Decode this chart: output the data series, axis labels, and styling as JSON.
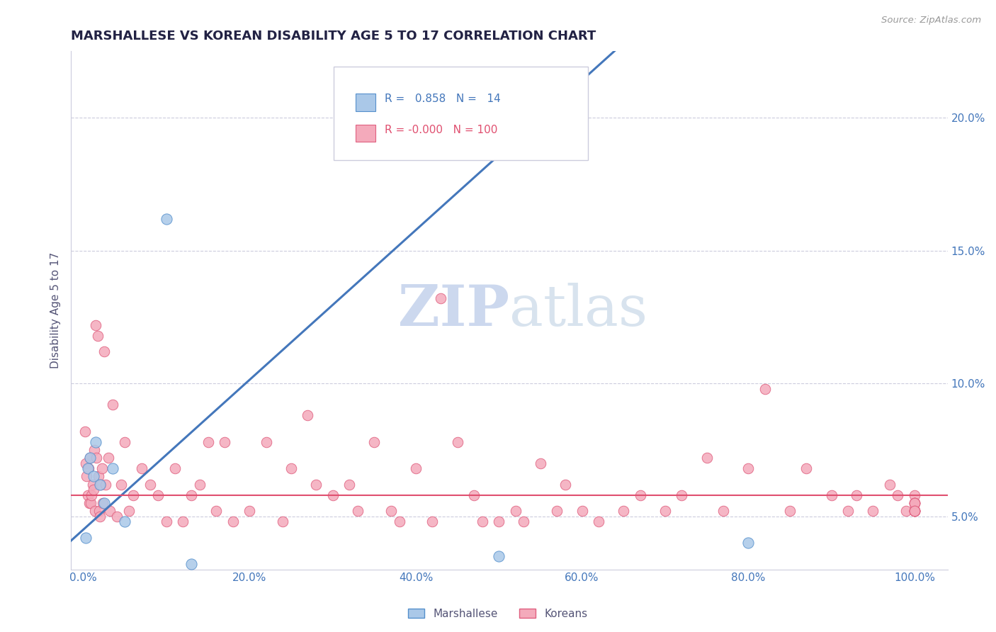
{
  "title": "MARSHALLESE VS KOREAN DISABILITY AGE 5 TO 17 CORRELATION CHART",
  "source": "Source: ZipAtlas.com",
  "xlabel_vals": [
    0.0,
    20.0,
    40.0,
    60.0,
    80.0,
    100.0
  ],
  "ylabel_vals": [
    5.0,
    10.0,
    15.0,
    20.0
  ],
  "xlim": [
    -1.5,
    104
  ],
  "ylim": [
    3.0,
    22.5
  ],
  "marshallese_R": 0.858,
  "marshallese_N": 14,
  "korean_R": -0.0,
  "korean_N": 100,
  "marshallese_color": "#aac8e8",
  "korean_color": "#f4aabb",
  "marshallese_edge_color": "#5590cc",
  "korean_edge_color": "#e06080",
  "marshallese_line_color": "#4477bb",
  "korean_line_color": "#e05070",
  "grid_color": "#ccccdd",
  "watermark_color": "#ccd8ee",
  "title_color": "#222244",
  "axis_tick_color": "#4477bb",
  "source_color": "#999999",
  "legend_r_color_blue": "#4477bb",
  "legend_r_color_pink": "#e05070",
  "marshallese_x": [
    0.3,
    0.5,
    0.8,
    1.2,
    1.5,
    2.0,
    2.5,
    3.5,
    5.0,
    10.0,
    13.0,
    50.0,
    55.0,
    80.0
  ],
  "marshallese_y": [
    4.2,
    6.8,
    7.2,
    6.5,
    7.8,
    6.2,
    5.5,
    6.8,
    4.8,
    16.2,
    3.2,
    3.5,
    18.8,
    4.0
  ],
  "korean_x": [
    0.2,
    0.3,
    0.4,
    0.5,
    0.6,
    0.7,
    0.8,
    0.9,
    1.0,
    1.1,
    1.2,
    1.3,
    1.4,
    1.5,
    1.6,
    1.7,
    1.8,
    1.9,
    2.0,
    2.1,
    2.2,
    2.3,
    2.5,
    2.7,
    3.0,
    3.2,
    3.5,
    4.0,
    4.5,
    5.0,
    5.5,
    6.0,
    7.0,
    8.0,
    9.0,
    10.0,
    11.0,
    12.0,
    13.0,
    14.0,
    15.0,
    16.0,
    17.0,
    18.0,
    20.0,
    22.0,
    24.0,
    25.0,
    27.0,
    28.0,
    30.0,
    32.0,
    33.0,
    35.0,
    37.0,
    38.0,
    40.0,
    42.0,
    43.0,
    45.0,
    47.0,
    48.0,
    50.0,
    52.0,
    53.0,
    55.0,
    57.0,
    58.0,
    60.0,
    62.0,
    65.0,
    67.0,
    70.0,
    72.0,
    75.0,
    77.0,
    80.0,
    82.0,
    85.0,
    87.0,
    90.0,
    92.0,
    93.0,
    95.0,
    97.0,
    98.0,
    99.0,
    100.0,
    100.0,
    100.0,
    100.0,
    100.0,
    100.0,
    100.0,
    100.0,
    100.0,
    100.0,
    100.0,
    100.0,
    100.0
  ],
  "korean_y": [
    8.2,
    7.0,
    6.5,
    5.8,
    6.8,
    5.5,
    7.2,
    5.5,
    5.8,
    6.2,
    6.0,
    7.5,
    5.2,
    12.2,
    7.2,
    11.8,
    6.5,
    5.2,
    5.0,
    6.2,
    6.8,
    5.5,
    11.2,
    6.2,
    7.2,
    5.2,
    9.2,
    5.0,
    6.2,
    7.8,
    5.2,
    5.8,
    6.8,
    6.2,
    5.8,
    4.8,
    6.8,
    4.8,
    5.8,
    6.2,
    7.8,
    5.2,
    7.8,
    4.8,
    5.2,
    7.8,
    4.8,
    6.8,
    8.8,
    6.2,
    5.8,
    6.2,
    5.2,
    7.8,
    5.2,
    4.8,
    6.8,
    4.8,
    13.2,
    7.8,
    5.8,
    4.8,
    4.8,
    5.2,
    4.8,
    7.0,
    5.2,
    6.2,
    5.2,
    4.8,
    5.2,
    5.8,
    5.2,
    5.8,
    7.2,
    5.2,
    6.8,
    9.8,
    5.2,
    6.8,
    5.8,
    5.2,
    5.8,
    5.2,
    6.2,
    5.8,
    5.2,
    5.8,
    5.2,
    5.5,
    5.2,
    5.5,
    5.2,
    5.5,
    5.2,
    5.5,
    5.2,
    5.5,
    5.2,
    5.2
  ]
}
